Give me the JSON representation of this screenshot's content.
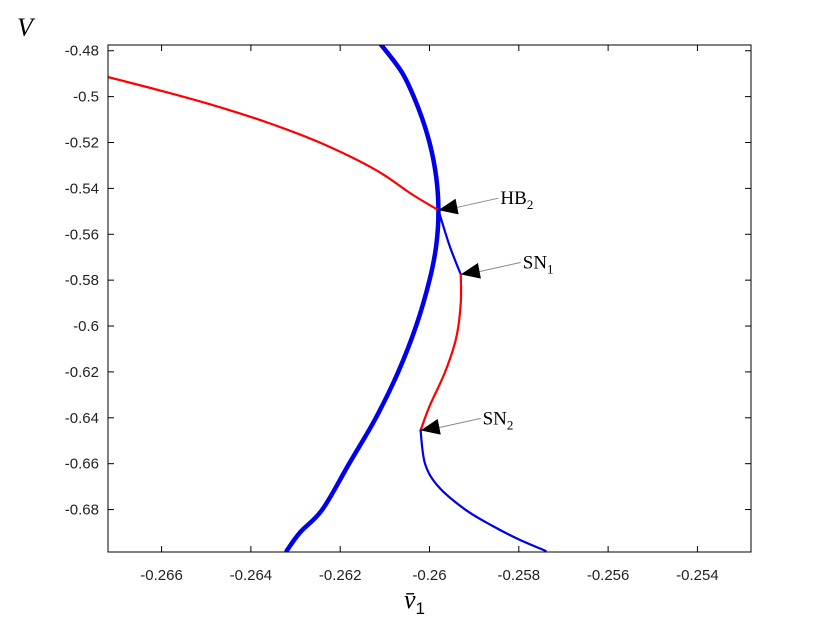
{
  "chart_data": {
    "type": "line",
    "xlabel": "v̄1",
    "xlabel_base": "v̄",
    "xlabel_sub": "1",
    "ylabel": "V",
    "xlim": [
      -0.2672,
      -0.2528
    ],
    "ylim": [
      -0.6985,
      -0.4775
    ],
    "x_ticks": [
      -0.266,
      -0.264,
      -0.262,
      -0.26,
      -0.258,
      -0.256,
      -0.254
    ],
    "x_tick_labels": [
      "-0.266",
      "-0.264",
      "-0.262",
      "-0.26",
      "-0.258",
      "-0.256",
      "-0.254"
    ],
    "y_ticks": [
      -0.48,
      -0.5,
      -0.52,
      -0.54,
      -0.56,
      -0.58,
      -0.6,
      -0.62,
      -0.64,
      -0.66,
      -0.68
    ],
    "y_tick_labels": [
      "-0.48",
      "-0.5",
      "-0.52",
      "-0.54",
      "-0.56",
      "-0.58",
      "-0.6",
      "-0.62",
      "-0.64",
      "-0.66",
      "-0.68"
    ],
    "grid": false,
    "series": [
      {
        "color": "#0000ee",
        "style": "thick",
        "x": [
          -0.2611,
          -0.2606,
          -0.26025,
          -0.26,
          -0.25985,
          -0.2598,
          -0.25985,
          -0.26,
          -0.2603,
          -0.2607,
          -0.2612,
          -0.2618,
          -0.2624,
          -0.2629,
          -0.2632
        ],
        "y": [
          -0.477,
          -0.49,
          -0.505,
          -0.52,
          -0.535,
          -0.55,
          -0.565,
          -0.58,
          -0.6,
          -0.62,
          -0.64,
          -0.66,
          -0.68,
          -0.69,
          -0.698
        ]
      },
      {
        "color": "#ff0000",
        "style": "thin",
        "x": [
          -0.2672,
          -0.266,
          -0.2648,
          -0.2636,
          -0.2624,
          -0.2612,
          -0.2604,
          -0.2598
        ],
        "y": [
          -0.4915,
          -0.4975,
          -0.504,
          -0.5115,
          -0.5205,
          -0.532,
          -0.5425,
          -0.5495
        ]
      },
      {
        "color": "#0000ee",
        "style": "thin",
        "x": [
          -0.2598,
          -0.25955,
          -0.2593
        ],
        "y": [
          -0.5495,
          -0.565,
          -0.5775
        ]
      },
      {
        "color": "#ff0000",
        "style": "thin",
        "x": [
          -0.2593,
          -0.2593,
          -0.2594,
          -0.25965,
          -0.26,
          -0.2602
        ],
        "y": [
          -0.5775,
          -0.59,
          -0.605,
          -0.62,
          -0.635,
          -0.6455
        ]
      },
      {
        "color": "#0000ee",
        "style": "thin",
        "x": [
          -0.2602,
          -0.2601,
          -0.2598,
          -0.2592,
          -0.2586,
          -0.258,
          -0.2574
        ],
        "y": [
          -0.6455,
          -0.66,
          -0.67,
          -0.68,
          -0.687,
          -0.693,
          -0.698
        ]
      }
    ],
    "annotations": [
      {
        "label": "HB",
        "sub": "2",
        "x": -0.2598,
        "y": -0.5495
      },
      {
        "label": "SN",
        "sub": "1",
        "x": -0.2593,
        "y": -0.5775
      },
      {
        "label": "SN",
        "sub": "2",
        "x": -0.2602,
        "y": -0.6455
      }
    ]
  }
}
